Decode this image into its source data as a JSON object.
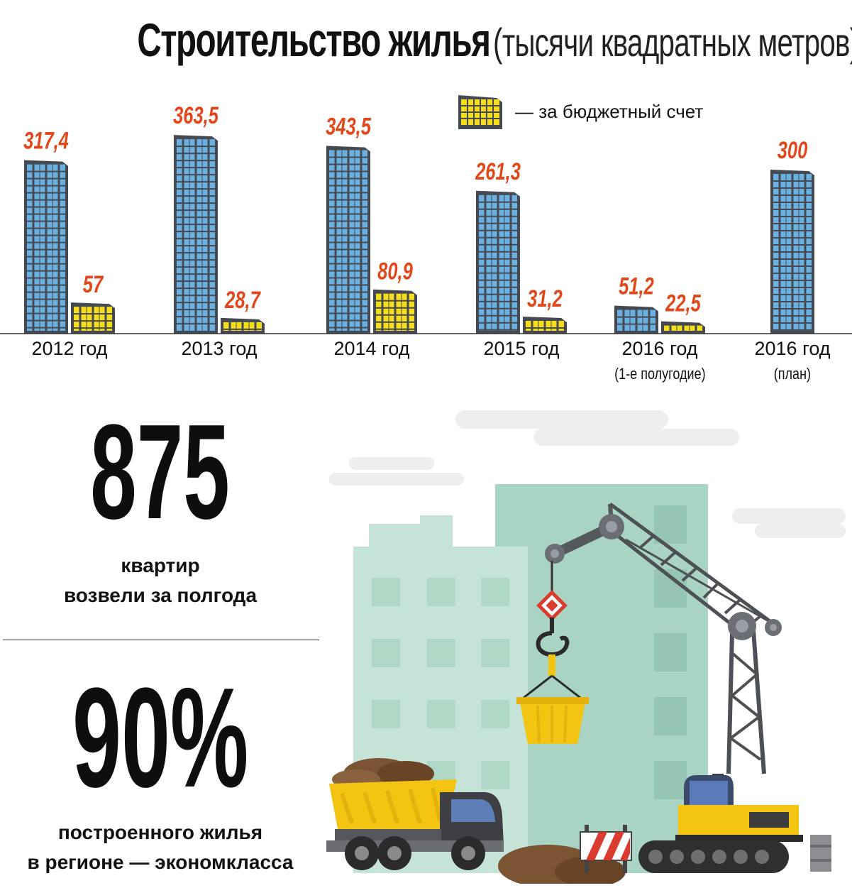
{
  "title": {
    "main": "Строительство жилья",
    "sub": "(тысячи квадратных метров)"
  },
  "legend": {
    "budget_label": "— за бюджетный счет",
    "budget_icon": "yellow-building-icon"
  },
  "colors": {
    "total_building": "#6ab0e0",
    "budget_building": "#f6df1a",
    "value_label": "#e0481c",
    "building_frame": "#454a52"
  },
  "chart_data": {
    "type": "bar",
    "title": "Строительство жилья (тысячи квадратных метров)",
    "categories": [
      "2012 год",
      "2013 год",
      "2014 год",
      "2015 год",
      "2016 год",
      "2016 год"
    ],
    "category_notes": [
      "",
      "",
      "",
      "",
      "(1-е полугодие)",
      "(план)"
    ],
    "series": [
      {
        "values": [
          317.4,
          363.5,
          343.5,
          261.3,
          51.2,
          300
        ],
        "labels": [
          "317,4",
          "363,5",
          "343,5",
          "261,3",
          "51,2",
          "300"
        ]
      },
      {
        "name": "за бюджетный счет",
        "values": [
          57,
          28.7,
          80.9,
          31.2,
          22.5,
          null
        ],
        "labels": [
          "57",
          "28,7",
          "80,9",
          "31,2",
          "22,5",
          null
        ]
      }
    ],
    "xlabel": "",
    "ylabel": "",
    "grid": false,
    "legend_position": "top-right"
  },
  "stats": {
    "apartments_value": "875",
    "apartments_text": [
      "квартир",
      "возвели за полгода"
    ],
    "economy_value": "90%",
    "economy_text": [
      "построенного жилья",
      "в регионе — экономкласса"
    ]
  }
}
